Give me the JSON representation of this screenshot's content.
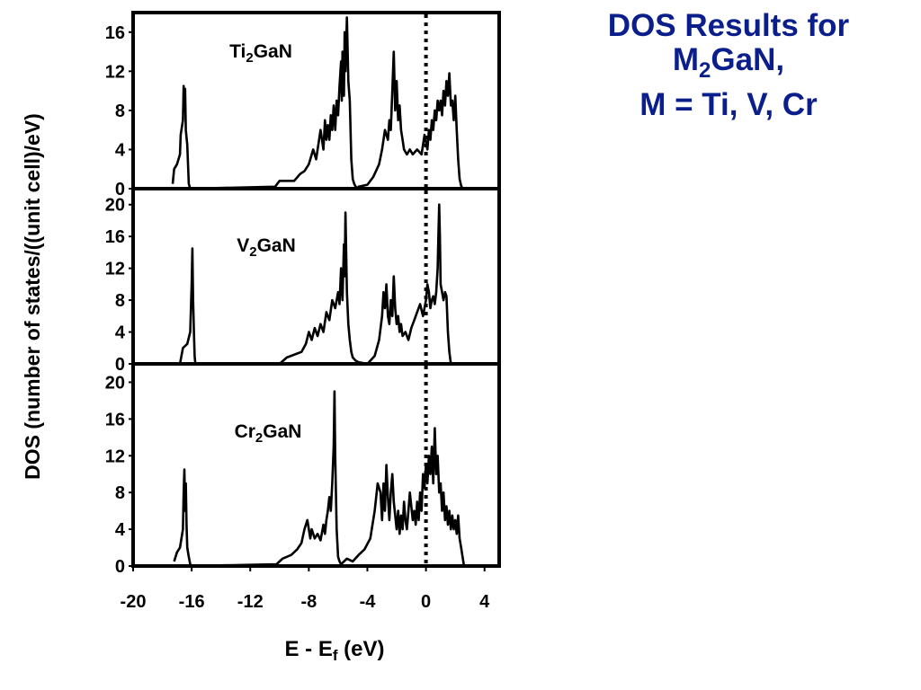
{
  "slide": {
    "title_line1": "DOS Results for",
    "title_line2_main": "M",
    "title_line2_sub": "2",
    "title_line2_rest": "GaN,",
    "title_line3": "M = Ti, V, Cr",
    "title_color": "#0a1e8c"
  },
  "chart_data": {
    "type": "line",
    "xlabel_main": "E - E",
    "xlabel_sub": "f",
    "xlabel_rest": " (eV)",
    "ylabel": "DOS (number of states/((unit cell)/eV)",
    "xlim": [
      -20,
      5
    ],
    "x_ticks": [
      "-20",
      "-16",
      "-12",
      "-8",
      "-4",
      "0",
      "4"
    ],
    "fermi_level": 0,
    "panels": [
      {
        "label_main": "Ti",
        "label_sub": "2",
        "label_rest": "GaN",
        "ylim": [
          0,
          18
        ],
        "y_ticks": [
          "0",
          "4",
          "8",
          "12",
          "16"
        ],
        "series": [
          {
            "x": [
              -17.3,
              -17.2,
              -17.0,
              -16.8,
              -16.75,
              -16.6,
              -16.55,
              -16.5,
              -16.45,
              -16.4,
              -16.3,
              -16.2,
              -16.1,
              -10.3,
              -10.0,
              -9.0,
              -8.6,
              -8.3,
              -8.0,
              -7.7,
              -7.5,
              -7.2,
              -7.0,
              -6.9,
              -6.8,
              -6.7,
              -6.6,
              -6.5,
              -6.4,
              -6.3,
              -6.2,
              -6.1,
              -6.0,
              -5.9,
              -5.8,
              -5.75,
              -5.7,
              -5.6,
              -5.55,
              -5.5,
              -5.4,
              -5.3,
              -5.2,
              -5.1,
              -5.0,
              -4.9,
              -4.8,
              -4.7,
              -4.6,
              -4.0,
              -3.6,
              -3.2,
              -3.0,
              -2.8,
              -2.6,
              -2.5,
              -2.4,
              -2.3,
              -2.2,
              -2.1,
              -2.0,
              -1.9,
              -1.8,
              -1.7,
              -1.6,
              -1.5,
              -1.3,
              -1.1,
              -0.9,
              -0.6,
              -0.3,
              -0.1,
              0.1,
              0.2,
              0.3,
              0.4,
              0.5,
              0.6,
              0.7,
              0.8,
              0.9,
              1.0,
              1.1,
              1.2,
              1.3,
              1.4,
              1.5,
              1.6,
              1.7,
              1.8,
              1.9,
              2.0,
              2.1,
              2.2,
              2.3,
              2.4,
              2.5
            ],
            "y": [
              0.5,
              2.0,
              2.5,
              3.5,
              5.5,
              7.0,
              10.5,
              9.0,
              10.2,
              6.0,
              4.5,
              0.5,
              0.0,
              0.2,
              0.8,
              0.8,
              1.5,
              1.8,
              2.5,
              4.0,
              3.0,
              6.0,
              4.0,
              7.0,
              5.0,
              6.5,
              5.0,
              7.5,
              6.0,
              8.5,
              6.0,
              9.0,
              7.5,
              10.5,
              13.0,
              9.0,
              14.0,
              9.5,
              16.0,
              12.0,
              17.5,
              11.0,
              9.0,
              3.0,
              1.0,
              0.5,
              0.2,
              0.0,
              0.2,
              0.4,
              1.2,
              2.5,
              4.0,
              6.0,
              5.0,
              7.0,
              6.0,
              10.0,
              14.0,
              8.0,
              11.0,
              7.0,
              8.5,
              6.0,
              5.0,
              4.0,
              3.5,
              4.0,
              3.5,
              4.0,
              3.5,
              5.5,
              4.0,
              6.0,
              5.0,
              7.0,
              6.0,
              8.0,
              7.0,
              9.0,
              8.0,
              9.0,
              7.5,
              10.0,
              8.5,
              11.0,
              9.5,
              11.8,
              8.5,
              9.0,
              7.0,
              9.5,
              6.0,
              3.0,
              1.0,
              0.3,
              0.0
            ]
          }
        ]
      },
      {
        "label_main": "V",
        "label_sub": "2",
        "label_rest": "GaN",
        "ylim": [
          0,
          22
        ],
        "y_ticks": [
          "0",
          "4",
          "8",
          "12",
          "16",
          "20"
        ],
        "series": [
          {
            "x": [
              -16.8,
              -16.6,
              -16.3,
              -16.1,
              -16.0,
              -15.95,
              -15.9,
              -15.85,
              -15.8,
              -15.75,
              -10.0,
              -9.5,
              -8.5,
              -8.2,
              -8.0,
              -7.8,
              -7.6,
              -7.4,
              -7.2,
              -7.0,
              -6.8,
              -6.6,
              -6.4,
              -6.2,
              -6.0,
              -5.9,
              -5.8,
              -5.7,
              -5.6,
              -5.55,
              -5.5,
              -5.45,
              -5.4,
              -5.3,
              -5.2,
              -5.1,
              -5.0,
              -4.8,
              -4.6,
              -4.0,
              -3.5,
              -3.2,
              -3.0,
              -2.9,
              -2.8,
              -2.7,
              -2.6,
              -2.5,
              -2.4,
              -2.3,
              -2.2,
              -2.1,
              -2.0,
              -1.9,
              -1.8,
              -1.7,
              -1.6,
              -1.4,
              -1.2,
              -1.0,
              -0.8,
              -0.6,
              -0.4,
              -0.2,
              0.0,
              0.1,
              0.2,
              0.3,
              0.4,
              0.5,
              0.6,
              0.7,
              0.8,
              0.85,
              0.9,
              0.95,
              1.0,
              1.1,
              1.2,
              1.3,
              1.4,
              1.5,
              1.6,
              1.7
            ],
            "y": [
              0.0,
              2.0,
              2.5,
              4.0,
              10.0,
              14.5,
              8.0,
              4.0,
              1.0,
              0.0,
              0.0,
              0.8,
              1.5,
              2.5,
              4.0,
              3.0,
              4.5,
              3.5,
              5.0,
              4.0,
              6.5,
              5.5,
              8.0,
              7.0,
              9.0,
              7.5,
              12.0,
              8.0,
              15.0,
              11.0,
              19.0,
              14.0,
              9.0,
              5.0,
              3.0,
              1.5,
              0.8,
              0.4,
              0.2,
              0.0,
              1.0,
              3.0,
              6.0,
              9.0,
              7.0,
              10.0,
              6.0,
              5.0,
              8.0,
              6.0,
              11.0,
              7.0,
              5.0,
              6.0,
              4.0,
              5.0,
              3.5,
              4.0,
              3.0,
              4.5,
              5.5,
              6.5,
              7.5,
              6.0,
              8.0,
              10.0,
              9.0,
              7.0,
              8.0,
              8.5,
              7.5,
              9.0,
              12.0,
              16.0,
              20.0,
              16.0,
              10.0,
              9.0,
              8.0,
              9.0,
              8.5,
              4.0,
              1.5,
              0.0
            ]
          }
        ]
      },
      {
        "label_main": "Cr",
        "label_sub": "2",
        "label_rest": "GaN",
        "ylim": [
          0,
          22
        ],
        "y_ticks": [
          "0",
          "4",
          "8",
          "12",
          "16",
          "20"
        ],
        "series": [
          {
            "x": [
              -17.2,
              -17.0,
              -16.8,
              -16.6,
              -16.55,
              -16.5,
              -16.45,
              -16.4,
              -16.35,
              -16.3,
              -16.2,
              -16.1,
              -16.0,
              -10.2,
              -9.8,
              -9.2,
              -8.8,
              -8.5,
              -8.3,
              -8.1,
              -8.0,
              -7.9,
              -7.8,
              -7.6,
              -7.4,
              -7.2,
              -7.0,
              -6.9,
              -6.8,
              -6.7,
              -6.6,
              -6.5,
              -6.4,
              -6.3,
              -6.25,
              -6.2,
              -6.15,
              -6.1,
              -6.0,
              -5.9,
              -5.8,
              -5.6,
              -5.4,
              -5.0,
              -4.6,
              -4.2,
              -3.8,
              -3.5,
              -3.3,
              -3.1,
              -3.0,
              -2.9,
              -2.8,
              -2.7,
              -2.6,
              -2.5,
              -2.4,
              -2.3,
              -2.2,
              -2.1,
              -2.0,
              -1.9,
              -1.8,
              -1.7,
              -1.6,
              -1.5,
              -1.4,
              -1.3,
              -1.2,
              -1.1,
              -1.0,
              -0.9,
              -0.8,
              -0.7,
              -0.6,
              -0.5,
              -0.4,
              -0.3,
              -0.2,
              -0.1,
              0.0,
              0.1,
              0.2,
              0.3,
              0.4,
              0.5,
              0.6,
              0.7,
              0.8,
              0.9,
              1.0,
              1.1,
              1.2,
              1.3,
              1.4,
              1.5,
              1.6,
              1.7,
              1.8,
              1.9,
              2.0,
              2.1,
              2.2,
              2.3,
              2.4,
              2.5,
              2.6
            ],
            "y": [
              0.5,
              1.5,
              2.0,
              4.0,
              8.0,
              10.5,
              6.0,
              9.0,
              4.5,
              2.0,
              1.0,
              0.2,
              0.0,
              0.2,
              0.8,
              1.2,
              1.8,
              2.5,
              4.0,
              5.0,
              4.0,
              3.0,
              4.0,
              3.0,
              3.5,
              2.8,
              4.5,
              3.5,
              5.0,
              6.0,
              7.5,
              6.0,
              9.0,
              13.0,
              19.0,
              12.0,
              8.0,
              4.0,
              1.0,
              0.5,
              0.2,
              0.5,
              0.8,
              0.5,
              1.2,
              1.8,
              3.0,
              6.0,
              9.0,
              8.0,
              5.0,
              9.0,
              6.0,
              11.0,
              7.5,
              5.0,
              8.0,
              10.0,
              7.0,
              5.5,
              4.0,
              6.0,
              3.5,
              5.5,
              4.0,
              7.0,
              5.0,
              4.0,
              6.0,
              8.0,
              6.5,
              5.0,
              6.0,
              4.5,
              7.0,
              5.0,
              8.0,
              6.0,
              10.0,
              8.5,
              11.0,
              9.0,
              12.0,
              10.0,
              13.0,
              9.0,
              15.0,
              10.0,
              12.0,
              8.0,
              9.0,
              6.0,
              8.0,
              5.0,
              6.5,
              4.5,
              6.0,
              4.0,
              5.5,
              4.0,
              5.0,
              3.5,
              5.5,
              3.0,
              2.0,
              1.0,
              0.0
            ]
          }
        ]
      }
    ]
  }
}
